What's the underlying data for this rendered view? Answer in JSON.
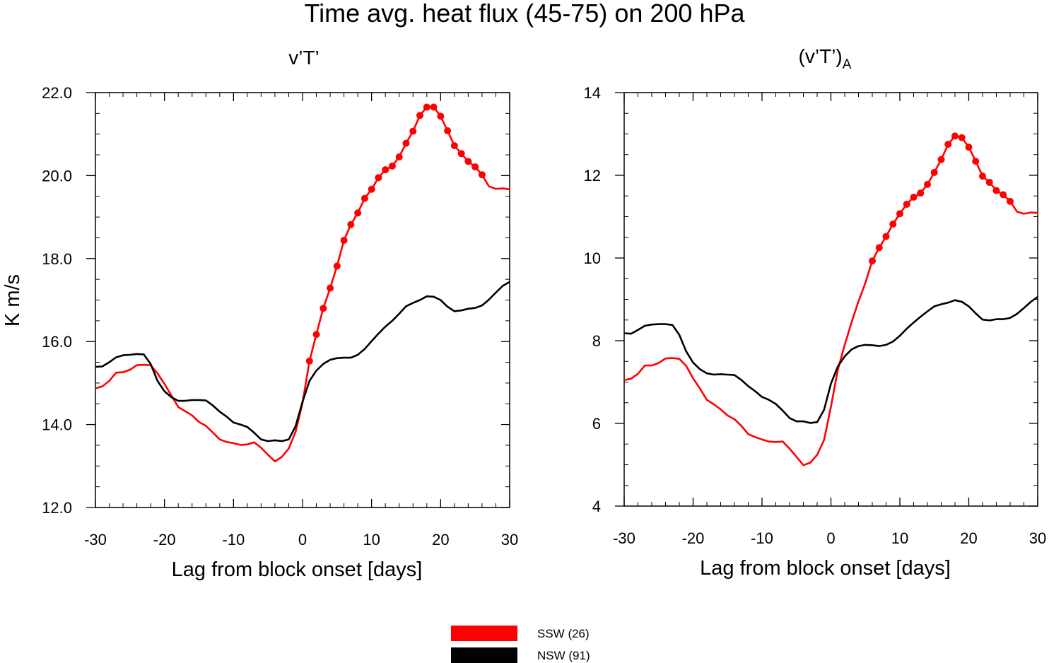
{
  "figure": {
    "title": "Time avg. heat flux (45-75) on 200 hPa",
    "ylabel": "K m/s"
  },
  "legend": [
    {
      "label": "SSW (26)",
      "color": "#ff0000"
    },
    {
      "label": "NSW (91)",
      "color": "#000000"
    }
  ],
  "chart_data": [
    {
      "type": "line",
      "title": "v’T’",
      "xlabel": "Lag from block onset [days]",
      "ylabel": "K m/s",
      "xlim": [
        -30,
        30
      ],
      "ylim": [
        12,
        22
      ],
      "x_ticks": [
        -30,
        -20,
        -10,
        0,
        10,
        20,
        30
      ],
      "x_tick_labels": [
        "-30",
        "-20",
        "-10",
        "0",
        "10",
        "20",
        "30"
      ],
      "y_ticks": [
        12,
        14,
        16,
        18,
        20,
        22
      ],
      "y_tick_labels": [
        "12.0",
        "14.0",
        "16.0",
        "18.0",
        "20.0",
        "22.0"
      ],
      "x": [
        -30,
        -29,
        -28,
        -27,
        -26,
        -25,
        -24,
        -23,
        -22,
        -21,
        -20,
        -19,
        -18,
        -17,
        -16,
        -15,
        -14,
        -13,
        -12,
        -11,
        -10,
        -9,
        -8,
        -7,
        -6,
        -5,
        -4,
        -3,
        -2,
        -1,
        0,
        1,
        2,
        3,
        4,
        5,
        6,
        7,
        8,
        9,
        10,
        11,
        12,
        13,
        14,
        15,
        16,
        17,
        18,
        19,
        20,
        21,
        22,
        23,
        24,
        25,
        26,
        27,
        28,
        29,
        30
      ],
      "series": [
        {
          "name": "SSW (26)",
          "color": "#ff0000",
          "values": [
            14.87,
            14.92,
            15.05,
            15.25,
            15.26,
            15.32,
            15.43,
            15.44,
            15.43,
            15.23,
            14.98,
            14.7,
            14.42,
            14.32,
            14.22,
            14.06,
            13.97,
            13.81,
            13.64,
            13.58,
            13.55,
            13.51,
            13.52,
            13.57,
            13.44,
            13.27,
            13.11,
            13.22,
            13.42,
            13.83,
            14.52,
            15.53,
            16.17,
            16.8,
            17.29,
            17.82,
            18.44,
            18.82,
            19.1,
            19.45,
            19.67,
            19.95,
            20.14,
            20.23,
            20.45,
            20.78,
            21.07,
            21.45,
            21.65,
            21.65,
            21.43,
            21.08,
            20.72,
            20.53,
            20.34,
            20.21,
            20.02,
            19.74,
            19.68,
            19.69,
            19.67
          ],
          "markers": [
            0,
            0,
            0,
            0,
            0,
            0,
            0,
            0,
            0,
            0,
            0,
            0,
            0,
            0,
            0,
            0,
            0,
            0,
            0,
            0,
            0,
            0,
            0,
            0,
            0,
            0,
            0,
            0,
            0,
            0,
            0,
            1,
            1,
            1,
            1,
            1,
            1,
            1,
            1,
            1,
            1,
            1,
            1,
            1,
            1,
            1,
            1,
            1,
            1,
            1,
            1,
            1,
            1,
            1,
            1,
            1,
            1,
            0,
            0,
            0,
            0
          ]
        },
        {
          "name": "NSW (91)",
          "color": "#000000",
          "values": [
            15.39,
            15.4,
            15.5,
            15.62,
            15.67,
            15.68,
            15.7,
            15.69,
            15.46,
            15.05,
            14.8,
            14.66,
            14.57,
            14.57,
            14.59,
            14.59,
            14.58,
            14.46,
            14.31,
            14.19,
            14.05,
            14.0,
            13.94,
            13.8,
            13.64,
            13.6,
            13.62,
            13.6,
            13.64,
            13.96,
            14.55,
            15.05,
            15.3,
            15.46,
            15.56,
            15.6,
            15.61,
            15.61,
            15.68,
            15.82,
            16.01,
            16.19,
            16.36,
            16.5,
            16.67,
            16.85,
            16.93,
            17.0,
            17.09,
            17.08,
            17.0,
            16.84,
            16.73,
            16.75,
            16.79,
            16.81,
            16.87,
            17.01,
            17.18,
            17.34,
            17.44
          ],
          "markers": []
        }
      ]
    },
    {
      "type": "line",
      "title": "(v’T’)",
      "title_subscript": "A",
      "xlabel": "Lag from block onset [days]",
      "ylabel": "",
      "xlim": [
        -30,
        30
      ],
      "ylim": [
        4,
        14
      ],
      "x_ticks": [
        -30,
        -20,
        -10,
        0,
        10,
        20,
        30
      ],
      "x_tick_labels": [
        "-30",
        "-20",
        "-10",
        "0",
        "10",
        "20",
        "30"
      ],
      "y_ticks": [
        4,
        6,
        8,
        10,
        12,
        14
      ],
      "y_tick_labels": [
        "4",
        "6",
        "8",
        "10",
        "12",
        "14"
      ],
      "x": [
        -30,
        -29,
        -28,
        -27,
        -26,
        -25,
        -24,
        -23,
        -22,
        -21,
        -20,
        -19,
        -18,
        -17,
        -16,
        -15,
        -14,
        -13,
        -12,
        -11,
        -10,
        -9,
        -8,
        -7,
        -6,
        -5,
        -4,
        -3,
        -2,
        -1,
        0,
        1,
        2,
        3,
        4,
        5,
        6,
        7,
        8,
        9,
        10,
        11,
        12,
        13,
        14,
        15,
        16,
        17,
        18,
        19,
        20,
        21,
        22,
        23,
        24,
        25,
        26,
        27,
        28,
        29,
        30
      ],
      "series": [
        {
          "name": "SSW (26)",
          "color": "#ff0000",
          "values": [
            7.05,
            7.08,
            7.2,
            7.4,
            7.4,
            7.46,
            7.57,
            7.58,
            7.56,
            7.39,
            7.09,
            6.84,
            6.57,
            6.46,
            6.34,
            6.19,
            6.1,
            5.94,
            5.74,
            5.67,
            5.61,
            5.56,
            5.55,
            5.56,
            5.39,
            5.19,
            4.99,
            5.05,
            5.24,
            5.6,
            6.4,
            7.3,
            7.9,
            8.45,
            8.95,
            9.4,
            9.93,
            10.25,
            10.52,
            10.82,
            11.07,
            11.3,
            11.47,
            11.57,
            11.78,
            12.07,
            12.38,
            12.75,
            12.95,
            12.91,
            12.68,
            12.34,
            11.98,
            11.83,
            11.63,
            11.53,
            11.37,
            11.12,
            11.07,
            11.1,
            11.09
          ],
          "markers": [
            0,
            0,
            0,
            0,
            0,
            0,
            0,
            0,
            0,
            0,
            0,
            0,
            0,
            0,
            0,
            0,
            0,
            0,
            0,
            0,
            0,
            0,
            0,
            0,
            0,
            0,
            0,
            0,
            0,
            0,
            0,
            0,
            0,
            0,
            0,
            0,
            1,
            1,
            1,
            1,
            1,
            1,
            1,
            1,
            1,
            1,
            1,
            1,
            1,
            1,
            1,
            1,
            1,
            1,
            1,
            1,
            1,
            0,
            0,
            0,
            0
          ]
        },
        {
          "name": "NSW (91)",
          "color": "#000000",
          "values": [
            8.18,
            8.17,
            8.26,
            8.36,
            8.39,
            8.4,
            8.4,
            8.38,
            8.14,
            7.74,
            7.47,
            7.31,
            7.21,
            7.18,
            7.19,
            7.18,
            7.17,
            7.05,
            6.9,
            6.78,
            6.64,
            6.57,
            6.47,
            6.31,
            6.13,
            6.05,
            6.05,
            6.01,
            6.03,
            6.33,
            6.96,
            7.38,
            7.62,
            7.79,
            7.87,
            7.9,
            7.89,
            7.87,
            7.9,
            7.98,
            8.12,
            8.29,
            8.44,
            8.58,
            8.71,
            8.83,
            8.88,
            8.92,
            8.98,
            8.94,
            8.83,
            8.66,
            8.51,
            8.49,
            8.52,
            8.52,
            8.55,
            8.65,
            8.79,
            8.94,
            9.06
          ],
          "markers": []
        }
      ]
    }
  ]
}
